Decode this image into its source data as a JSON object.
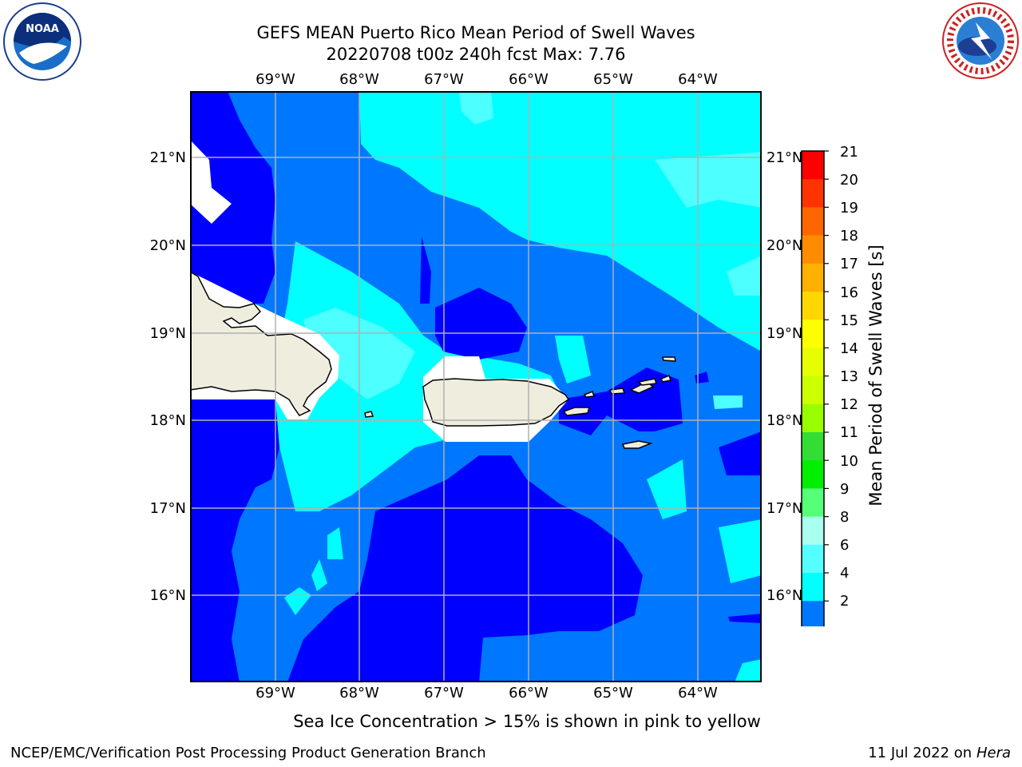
{
  "header": {
    "title_line1": "GEFS MEAN Puerto Rico Mean Period of Swell Waves",
    "title_line2": "20220708 t00z 240h fcst   Max: 7.76"
  },
  "logos": {
    "left": {
      "icon": "noaa-logo",
      "text": "NOAA"
    },
    "right": {
      "icon": "national-weather-service-logo",
      "text": "NATIONAL WEATHER SERVICE"
    }
  },
  "map": {
    "lon_labels": [
      "69°W",
      "68°W",
      "67°W",
      "66°W",
      "65°W",
      "64°W"
    ],
    "lat_labels": [
      "21°N",
      "20°N",
      "19°N",
      "18°N",
      "17°N",
      "16°N"
    ],
    "colors": {
      "band_2_4": "#0000ff",
      "band_4_6": "#0077ff",
      "band_6_8": "#00ffff",
      "band_8_9": "#4dffff",
      "land": "#efedde",
      "masked": "#ffffff",
      "grid": "#b0b0b0"
    }
  },
  "colorbar": {
    "label": "Mean Period of Swell Waves [s]",
    "ticks": [
      "21",
      "20",
      "19",
      "18",
      "17",
      "16",
      "15",
      "14",
      "13",
      "12",
      "11",
      "10",
      "9",
      "8",
      "6",
      "4",
      "2"
    ],
    "colors": [
      "#ff0000",
      "#ff3300",
      "#ff6600",
      "#ff8c00",
      "#ffb000",
      "#ffd700",
      "#ffff00",
      "#e6ff00",
      "#ccff00",
      "#99ff00",
      "#33dd33",
      "#00ee00",
      "#55ff77",
      "#aaffee",
      "#55ffff",
      "#00ffff",
      "#0077ff",
      "#0000ff"
    ]
  },
  "footer": {
    "note": "Sea Ice Concentration > 15% is shown in pink to yellow",
    "credit": "NCEP/EMC/Verification Post Processing Product Generation Branch",
    "date": "11 Jul 2022 on",
    "host": "Hera"
  }
}
